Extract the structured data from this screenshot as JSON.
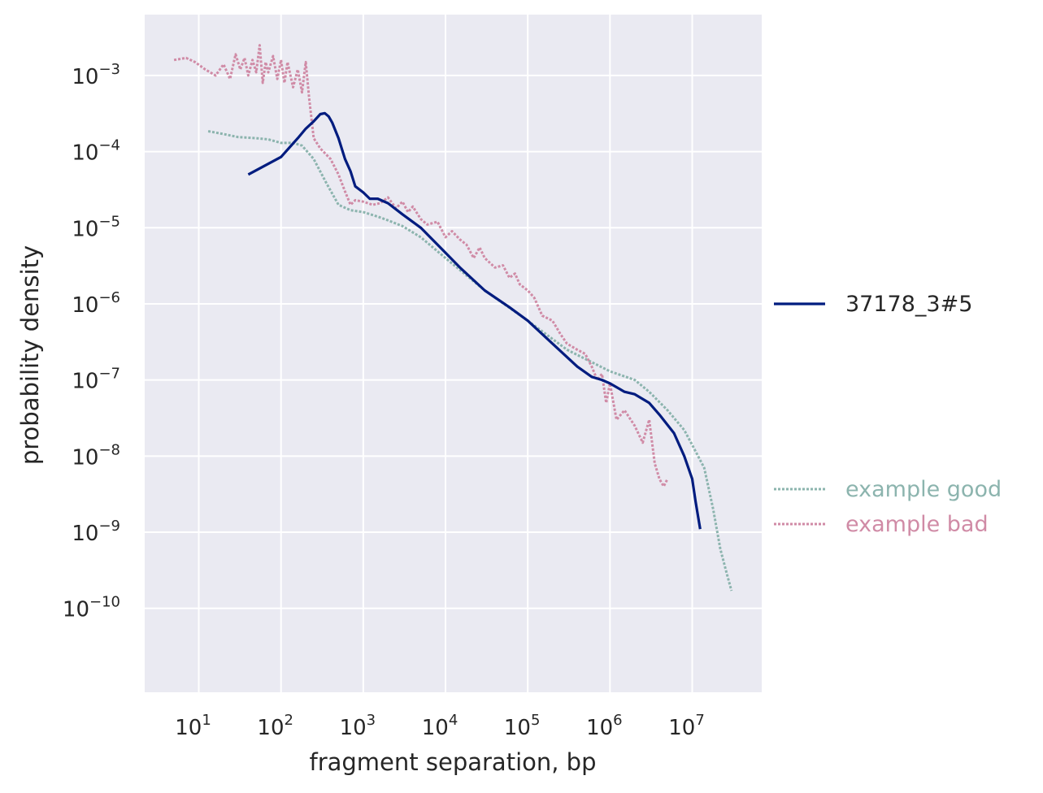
{
  "chart_data": {
    "type": "line",
    "xlabel": "fragment separation, bp",
    "ylabel": "probability density",
    "xscale": "log",
    "yscale": "log",
    "xlim": [
      2.2,
      70000000
    ],
    "ylim": [
      7.9e-12,
      0.0063
    ],
    "x_ticks": [
      10,
      100,
      1000,
      10000,
      100000,
      1000000,
      10000000
    ],
    "x_tick_labels": [
      {
        "base": "10",
        "exp": "1"
      },
      {
        "base": "10",
        "exp": "2"
      },
      {
        "base": "10",
        "exp": "3"
      },
      {
        "base": "10",
        "exp": "4"
      },
      {
        "base": "10",
        "exp": "5"
      },
      {
        "base": "10",
        "exp": "6"
      },
      {
        "base": "10",
        "exp": "7"
      }
    ],
    "y_ticks": [
      1e-10,
      1e-09,
      1e-08,
      1e-07,
      1e-06,
      1e-05,
      0.0001,
      0.001
    ],
    "y_tick_labels": [
      {
        "base": "10",
        "exp": "−10"
      },
      {
        "base": "10",
        "exp": "−9"
      },
      {
        "base": "10",
        "exp": "−8"
      },
      {
        "base": "10",
        "exp": "−7"
      },
      {
        "base": "10",
        "exp": "−6"
      },
      {
        "base": "10",
        "exp": "−5"
      },
      {
        "base": "10",
        "exp": "−4"
      },
      {
        "base": "10",
        "exp": "−3"
      }
    ],
    "grid": true,
    "background": "#eaeaf2",
    "legend_placement": "right",
    "series": [
      {
        "name": "37178_3#5",
        "color": "#001c7f",
        "style": "solid",
        "x": [
          40,
          100,
          160,
          200,
          250,
          300,
          340,
          380,
          420,
          500,
          600,
          700,
          800,
          1000,
          1200,
          1500,
          2000,
          3000,
          5000,
          8000,
          15000,
          30000,
          60000,
          100000,
          200000,
          400000,
          600000,
          800000,
          1000000,
          1500000,
          2000000,
          3000000,
          4000000,
          6000000,
          8000000,
          10000000,
          11000000,
          12500000
        ],
        "y": [
          5e-05,
          8.5e-05,
          0.00015,
          0.0002,
          0.00025,
          0.00031,
          0.00032,
          0.00029,
          0.00024,
          0.00015,
          8e-05,
          5.5e-05,
          3.5e-05,
          2.9e-05,
          2.4e-05,
          2.4e-05,
          2.1e-05,
          1.5e-05,
          1e-05,
          6e-06,
          3e-06,
          1.5e-06,
          9e-07,
          6e-07,
          3e-07,
          1.5e-07,
          1.1e-07,
          1e-07,
          9e-08,
          7e-08,
          6.5e-08,
          5e-08,
          3.5e-08,
          2e-08,
          1e-08,
          5e-09,
          2.5e-09,
          1.1e-09
        ]
      },
      {
        "name": "example good",
        "color": "#8cb4ae",
        "style": "dotted",
        "x": [
          13,
          20,
          30,
          50,
          70,
          100,
          140,
          180,
          250,
          350,
          500,
          700,
          1000,
          1500,
          2000,
          3000,
          5000,
          10000,
          30000,
          100000,
          300000,
          1000000,
          2000000,
          3000000,
          5000000,
          8000000,
          10000000,
          14000000,
          18000000,
          22000000,
          26000000,
          30000000
        ],
        "y": [
          0.000185,
          0.00017,
          0.000155,
          0.00015,
          0.000145,
          0.00013,
          0.00013,
          0.00012,
          8e-05,
          4e-05,
          2e-05,
          1.7e-05,
          1.6e-05,
          1.4e-05,
          1.25e-05,
          1.05e-05,
          7.5e-06,
          4e-06,
          1.5e-06,
          6e-07,
          2.5e-07,
          1.3e-07,
          1e-07,
          7e-08,
          4e-08,
          2.2e-08,
          1.4e-08,
          7e-09,
          2e-09,
          6e-10,
          3e-10,
          1.7e-10
        ]
      },
      {
        "name": "example bad",
        "color": "#d08ba6",
        "style": "dotted",
        "x": [
          5,
          7,
          9,
          12,
          16,
          20,
          24,
          28,
          32,
          36,
          40,
          45,
          50,
          55,
          60,
          65,
          70,
          80,
          90,
          100,
          110,
          120,
          140,
          160,
          180,
          200,
          220,
          250,
          300,
          400,
          500,
          600,
          700,
          800,
          1000,
          1300,
          1600,
          2000,
          2500,
          3000,
          3500,
          4000,
          5000,
          6000,
          8000,
          10000,
          12000,
          15000,
          18000,
          22000,
          26000,
          30000,
          40000,
          50000,
          60000,
          70000,
          80000,
          100000,
          120000,
          150000,
          200000,
          250000,
          300000,
          400000,
          500000,
          600000,
          700000,
          800000,
          900000,
          1000000,
          1200000,
          1500000,
          2000000,
          2500000,
          3000000,
          3500000,
          4000000,
          4500000,
          5000000
        ],
        "y": [
          0.0016,
          0.0017,
          0.0015,
          0.0012,
          0.001,
          0.0014,
          0.0009,
          0.0019,
          0.0012,
          0.0017,
          0.001,
          0.0016,
          0.0011,
          0.0025,
          0.0008,
          0.0015,
          0.0011,
          0.0018,
          0.0009,
          0.0016,
          0.0008,
          0.0015,
          0.0007,
          0.0012,
          0.0006,
          0.0015,
          0.0005,
          0.00015,
          0.00011,
          8e-05,
          5e-05,
          3e-05,
          2e-05,
          2.3e-05,
          2.2e-05,
          2e-05,
          2.1e-05,
          2.5e-05,
          1.8e-05,
          2.2e-05,
          1.6e-05,
          1.9e-05,
          1.3e-05,
          1.1e-05,
          1.2e-05,
          7.5e-06,
          9e-06,
          7e-06,
          6e-06,
          4e-06,
          5.5e-06,
          4e-06,
          3e-06,
          3.2e-06,
          2.2e-06,
          2.5e-06,
          1.8e-06,
          1.5e-06,
          1.2e-06,
          7e-07,
          6e-07,
          4e-07,
          3e-07,
          2.5e-07,
          2.2e-07,
          1.5e-07,
          1e-07,
          1.2e-07,
          5e-08,
          9e-08,
          3e-08,
          4e-08,
          2.5e-08,
          1.5e-08,
          3e-08,
          8e-09,
          5e-09,
          4e-09,
          5e-09
        ]
      }
    ]
  }
}
